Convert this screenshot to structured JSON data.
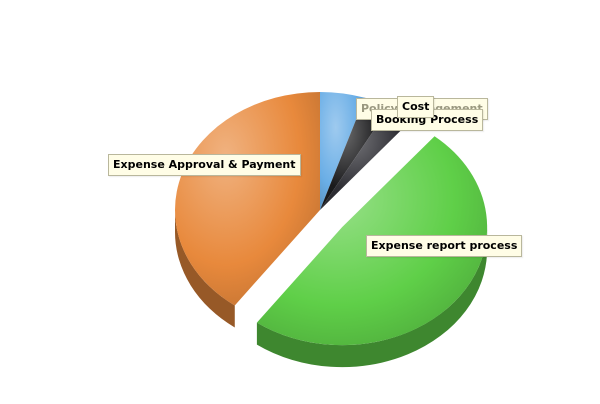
{
  "chart_data": {
    "type": "pie",
    "style": "3d-exploded",
    "slices": [
      {
        "label": "Policy Management",
        "value": 5,
        "color": "#6aaee6"
      },
      {
        "label": "Cost",
        "value": 3,
        "color": "#1a1a1c"
      },
      {
        "label": "Booking Process",
        "value": 3,
        "color": "#2e2e34"
      },
      {
        "label": "Expense report process",
        "value": 49,
        "color": "#5fcf48",
        "exploded": true
      },
      {
        "label": "Expense Approval & Payment",
        "value": 40,
        "color": "#e8893c"
      }
    ]
  }
}
